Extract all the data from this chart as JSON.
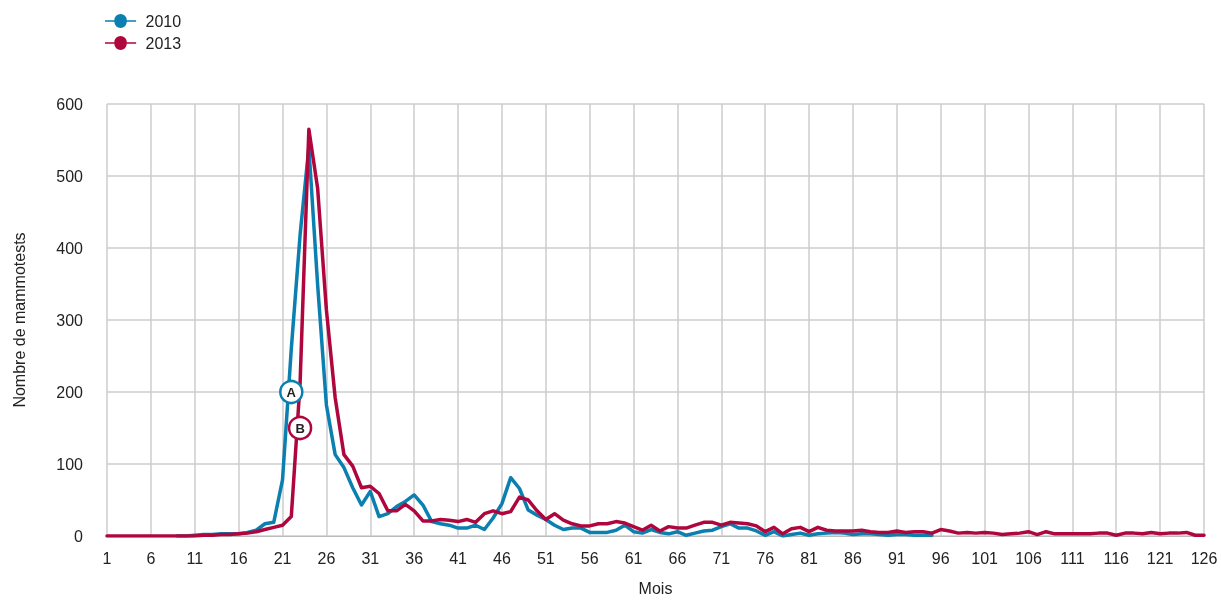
{
  "chart_data": {
    "type": "line",
    "xlabel": "Mois",
    "ylabel": "Nombre de mammotests",
    "x": [
      1,
      2,
      3,
      4,
      5,
      6,
      7,
      8,
      9,
      10,
      11,
      12,
      13,
      14,
      15,
      16,
      17,
      18,
      19,
      20,
      21,
      22,
      23,
      24,
      25,
      26,
      27,
      28,
      29,
      30,
      31,
      32,
      33,
      34,
      35,
      36,
      37,
      38,
      39,
      40,
      41,
      42,
      43,
      44,
      45,
      46,
      47,
      48,
      49,
      50,
      51,
      52,
      53,
      54,
      55,
      56,
      57,
      58,
      59,
      60,
      61,
      62,
      63,
      64,
      65,
      66,
      67,
      68,
      69,
      70,
      71,
      72,
      73,
      74,
      75,
      76,
      77,
      78,
      79,
      80,
      81,
      82,
      83,
      84,
      85,
      86,
      87,
      88,
      89,
      90,
      91,
      92,
      93,
      94,
      95,
      96,
      97,
      98,
      99,
      100,
      101,
      102,
      103,
      104,
      105,
      106,
      107,
      108,
      109,
      110,
      111,
      112,
      113,
      114,
      115,
      116,
      117,
      118,
      119,
      120,
      121,
      122,
      123,
      124,
      125,
      126
    ],
    "series": [
      {
        "name": "2010",
        "color": "#0a7fb0",
        "values": [
          null,
          null,
          null,
          null,
          null,
          null,
          null,
          null,
          0,
          0,
          1,
          2,
          2,
          3,
          3,
          3,
          5,
          8,
          17,
          19,
          78,
          260,
          418,
          540,
          349,
          182,
          113,
          95,
          67,
          43,
          62,
          27,
          31,
          41,
          48,
          57,
          43,
          20,
          17,
          15,
          11,
          11,
          15,
          9,
          25,
          45,
          81,
          66,
          36,
          29,
          23,
          15,
          9,
          11,
          11,
          5,
          5,
          5,
          8,
          15,
          6,
          4,
          9,
          5,
          3,
          6,
          1,
          4,
          7,
          8,
          13,
          17,
          11,
          11,
          7,
          1,
          6,
          0,
          2,
          4,
          1,
          3,
          4,
          5,
          4,
          2,
          3,
          3,
          2,
          1,
          2,
          2,
          1,
          1,
          1,
          null,
          null,
          null,
          null,
          null,
          null,
          null,
          null,
          null,
          null,
          null,
          null,
          null,
          null,
          null,
          null,
          null,
          null,
          null,
          null,
          null,
          null,
          null,
          null,
          null,
          null,
          null,
          null,
          null,
          null,
          null
        ]
      },
      {
        "name": "2013",
        "color": "#b0063e",
        "values": [
          0,
          0,
          0,
          0,
          0,
          0,
          0,
          0,
          0,
          0,
          0,
          1,
          1,
          2,
          2,
          3,
          4,
          6,
          9,
          12,
          15,
          27,
          212,
          565,
          483,
          314,
          192,
          113,
          97,
          67,
          69,
          59,
          35,
          35,
          44,
          35,
          21,
          21,
          23,
          22,
          20,
          23,
          19,
          31,
          35,
          31,
          34,
          54,
          50,
          35,
          23,
          31,
          22,
          17,
          14,
          14,
          17,
          17,
          20,
          18,
          13,
          8,
          15,
          7,
          13,
          11,
          11,
          15,
          19,
          19,
          15,
          19,
          18,
          17,
          14,
          6,
          12,
          3,
          10,
          12,
          6,
          12,
          8,
          7,
          7,
          7,
          8,
          6,
          5,
          5,
          7,
          5,
          6,
          6,
          4,
          9,
          7,
          4,
          5,
          4,
          5,
          4,
          2,
          3,
          4,
          6,
          2,
          6,
          3,
          3,
          3,
          3,
          3,
          4,
          4,
          1,
          4,
          4,
          3,
          5,
          3,
          4,
          4,
          5,
          1,
          1
        ]
      }
    ],
    "annotations": [
      {
        "text": "A",
        "x": 22,
        "y": 200
      },
      {
        "text": "B",
        "x": 23,
        "y": 150
      }
    ],
    "xlim": [
      1,
      126
    ],
    "xticks": [
      1,
      6,
      11,
      16,
      21,
      26,
      31,
      36,
      41,
      46,
      51,
      56,
      61,
      66,
      71,
      76,
      81,
      86,
      91,
      96,
      101,
      106,
      111,
      116,
      121,
      126
    ],
    "ylim": [
      0,
      600
    ],
    "yticks": [
      0,
      100,
      200,
      300,
      400,
      500,
      600
    ],
    "grid": true,
    "legend": "top left",
    "marker": "none",
    "line_style": "solid"
  }
}
